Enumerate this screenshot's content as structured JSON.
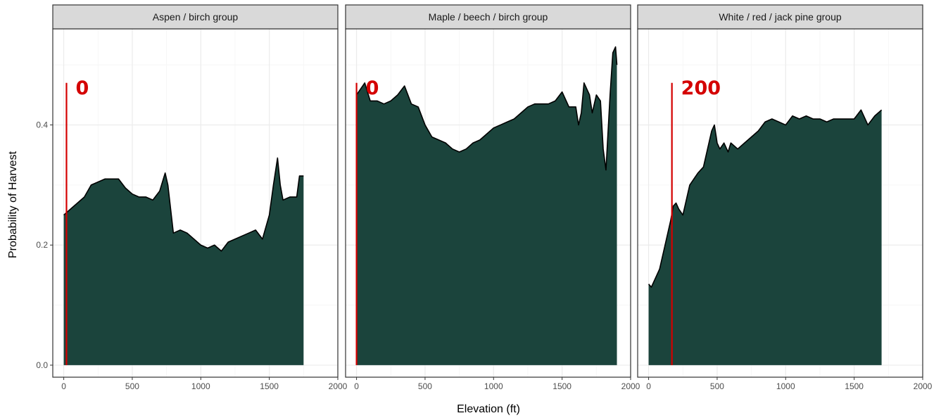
{
  "colors": {
    "fill": "#1b443c",
    "line": "#000000",
    "annotation": "#d40000",
    "strip_bg": "#d9d9d9",
    "grid_major": "#ebebeb",
    "grid_minor": "#f5f5f5",
    "panel_border": "#333333"
  },
  "chart_data": {
    "type": "area",
    "xlabel": "Elevation (ft)",
    "ylabel": "Probability of Harvest",
    "xlim": [
      -80,
      2000
    ],
    "ylim": [
      -0.02,
      0.56
    ],
    "x_ticks": [
      0,
      500,
      1000,
      1500,
      2000
    ],
    "y_ticks": [
      0.0,
      0.2,
      0.4
    ],
    "x_tick_labels": [
      "0",
      "500",
      "1000",
      "1500",
      "2000"
    ],
    "y_tick_labels": [
      "0.0",
      "0.2",
      "0.4"
    ],
    "grid": true,
    "legend": "none",
    "facets": [
      {
        "label": "Aspen / birch group",
        "annotation": {
          "x": 20,
          "text": "0"
        },
        "x": [
          0,
          50,
          100,
          150,
          200,
          250,
          300,
          350,
          400,
          450,
          500,
          550,
          600,
          650,
          700,
          740,
          760,
          800,
          850,
          900,
          950,
          1000,
          1050,
          1100,
          1150,
          1200,
          1250,
          1300,
          1350,
          1400,
          1450,
          1500,
          1530,
          1560,
          1580,
          1600,
          1650,
          1700,
          1720,
          1750
        ],
        "y": [
          0.25,
          0.26,
          0.27,
          0.28,
          0.3,
          0.305,
          0.31,
          0.31,
          0.31,
          0.295,
          0.285,
          0.28,
          0.28,
          0.275,
          0.29,
          0.32,
          0.3,
          0.22,
          0.225,
          0.22,
          0.21,
          0.2,
          0.195,
          0.2,
          0.19,
          0.205,
          0.21,
          0.215,
          0.22,
          0.225,
          0.21,
          0.25,
          0.3,
          0.345,
          0.3,
          0.275,
          0.28,
          0.28,
          0.315,
          0.315
        ]
      },
      {
        "label": "Maple / beech / birch group",
        "annotation": {
          "x": 0,
          "text": "0"
        },
        "x": [
          0,
          30,
          60,
          100,
          150,
          200,
          250,
          300,
          350,
          400,
          450,
          500,
          550,
          600,
          650,
          700,
          750,
          800,
          850,
          900,
          950,
          1000,
          1050,
          1100,
          1150,
          1200,
          1250,
          1300,
          1350,
          1400,
          1450,
          1500,
          1550,
          1600,
          1620,
          1640,
          1660,
          1680,
          1700,
          1720,
          1750,
          1780,
          1800,
          1820,
          1850,
          1870,
          1890,
          1900
        ],
        "y": [
          0.45,
          0.46,
          0.47,
          0.44,
          0.44,
          0.435,
          0.44,
          0.45,
          0.465,
          0.435,
          0.43,
          0.4,
          0.38,
          0.375,
          0.37,
          0.36,
          0.355,
          0.36,
          0.37,
          0.375,
          0.385,
          0.395,
          0.4,
          0.405,
          0.41,
          0.42,
          0.43,
          0.435,
          0.435,
          0.435,
          0.44,
          0.455,
          0.43,
          0.43,
          0.4,
          0.42,
          0.47,
          0.46,
          0.45,
          0.42,
          0.45,
          0.44,
          0.36,
          0.325,
          0.45,
          0.52,
          0.53,
          0.5
        ]
      },
      {
        "label": "White / red / jack pine group",
        "annotation": {
          "x": 170,
          "text": "200"
        },
        "x": [
          0,
          20,
          40,
          60,
          80,
          100,
          120,
          140,
          160,
          180,
          200,
          220,
          250,
          280,
          300,
          330,
          360,
          400,
          430,
          460,
          480,
          500,
          520,
          550,
          580,
          600,
          650,
          700,
          750,
          800,
          850,
          900,
          950,
          1000,
          1050,
          1100,
          1150,
          1200,
          1250,
          1300,
          1350,
          1400,
          1450,
          1500,
          1550,
          1600,
          1650,
          1700
        ],
        "y": [
          0.135,
          0.13,
          0.14,
          0.15,
          0.16,
          0.18,
          0.2,
          0.22,
          0.24,
          0.265,
          0.27,
          0.26,
          0.25,
          0.28,
          0.3,
          0.31,
          0.32,
          0.33,
          0.36,
          0.39,
          0.4,
          0.37,
          0.36,
          0.37,
          0.355,
          0.37,
          0.36,
          0.37,
          0.38,
          0.39,
          0.405,
          0.41,
          0.405,
          0.4,
          0.415,
          0.41,
          0.415,
          0.41,
          0.41,
          0.405,
          0.41,
          0.41,
          0.41,
          0.41,
          0.425,
          0.4,
          0.415,
          0.425
        ]
      }
    ]
  }
}
